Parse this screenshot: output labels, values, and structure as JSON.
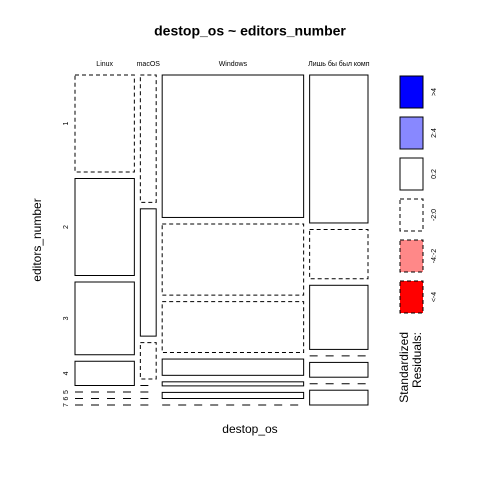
{
  "chart_data": {
    "type": "mosaic",
    "title": "destop_os ~ editors_number",
    "x_label": "destop_os",
    "y_label": "editors_number",
    "columns": [
      "Linux",
      "macOS",
      "Windows",
      "Лишь бы был комп"
    ],
    "rows": [
      "1",
      "2",
      "3",
      "4",
      "5",
      "6",
      "7"
    ],
    "counts": [
      [
        20,
        20,
        15,
        5,
        0,
        0,
        0
      ],
      [
        7,
        7,
        2,
        0,
        0,
        0,
        0
      ],
      [
        70,
        35,
        25,
        8,
        2,
        3,
        0
      ],
      [
        30,
        10,
        13,
        0,
        3,
        0,
        3
      ]
    ],
    "residuals": [
      [
        -0.5,
        0.5,
        0.5,
        0.5,
        -0.5,
        -0.5,
        -0.5
      ],
      [
        -0.5,
        0.5,
        -0.5,
        -0.5,
        -0.5,
        -0.5,
        -0.5
      ],
      [
        0.5,
        -0.5,
        -0.5,
        0.5,
        0.5,
        0.5,
        -0.5
      ],
      [
        0.5,
        -0.5,
        0.5,
        -0.5,
        0.5,
        -0.5,
        0.5
      ]
    ],
    "legend_title": [
      "Standardized",
      "Residuals:"
    ],
    "breaks": [
      -4,
      -2,
      0,
      2,
      4
    ],
    "legend": [
      {
        "label": ">4",
        "color": "#0000ff",
        "dashed": false
      },
      {
        "label": "2:4",
        "color": "#8888ff",
        "dashed": false
      },
      {
        "label": "0:2",
        "color": "#ffffff",
        "dashed": false
      },
      {
        "label": "-2:0",
        "color": "#ffffff",
        "dashed": true
      },
      {
        "label": "-4:-2",
        "color": "#ff8888",
        "dashed": true
      },
      {
        "label": "<-4",
        "color": "#ff0000",
        "dashed": true
      }
    ]
  }
}
